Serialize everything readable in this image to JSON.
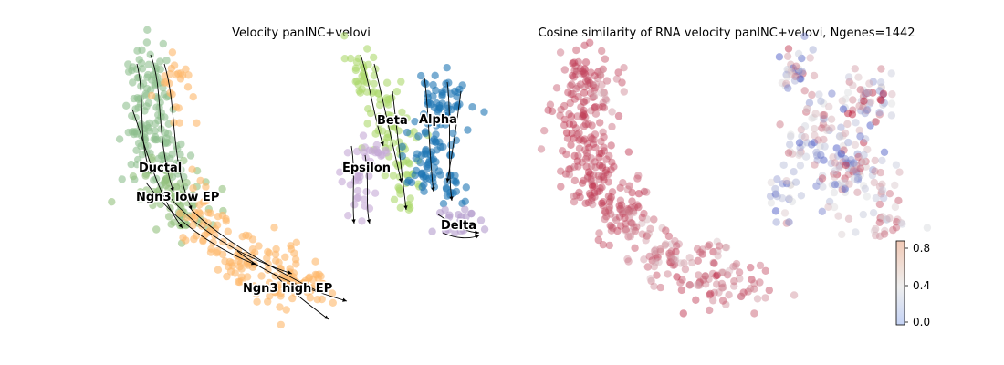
{
  "chart_data": [
    {
      "type": "scatter",
      "title": "Velocity panINC+velovi",
      "xlabel": "",
      "ylabel": "",
      "legend": "on data",
      "colors": {
        "Ductal": "#8fbf8f",
        "Ngn3 low EP": "#94c27f",
        "Ngn3 high EP": "#fdb76b",
        "Beta": "#aed86e",
        "Alpha": "#1f77b4",
        "Epsilon": "#c5a9d6",
        "Delta": "#b49ccd"
      },
      "series": [
        {
          "name": "Ductal"
        },
        {
          "name": "Ngn3 low EP"
        },
        {
          "name": "Ngn3 high EP"
        },
        {
          "name": "Beta"
        },
        {
          "name": "Alpha"
        },
        {
          "name": "Epsilon"
        },
        {
          "name": "Delta"
        }
      ]
    },
    {
      "type": "scatter",
      "title": "Cosine similarity of RNA velocity panINC+velovi, Ngenes=1442",
      "xlabel": "",
      "ylabel": "",
      "colorbar": {
        "ticks": [
          "0.0",
          "0.4",
          "0.8"
        ],
        "range": [
          0.0,
          0.9
        ],
        "colormap": "coolwarm",
        "low_color": "#3b4cc0",
        "mid_color": "#dddddd",
        "high_color": "#b40426"
      }
    }
  ]
}
